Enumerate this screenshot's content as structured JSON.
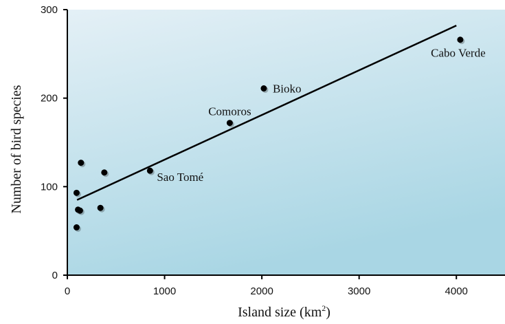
{
  "chart_data": {
    "type": "scatter",
    "title": "",
    "xlabel": "Island size (km",
    "xlabel_superscript": "2",
    "xlabel_suffix": ")",
    "ylabel": "Number of bird species",
    "xlim": [
      0,
      4500
    ],
    "ylim": [
      0,
      300
    ],
    "x_ticks": [
      0,
      1000,
      2000,
      3000,
      4000
    ],
    "y_ticks": [
      0,
      100,
      200,
      300
    ],
    "grid": false,
    "points": [
      {
        "x": 95,
        "y": 54,
        "label": ""
      },
      {
        "x": 95,
        "y": 93,
        "label": ""
      },
      {
        "x": 110,
        "y": 74,
        "label": ""
      },
      {
        "x": 130,
        "y": 73,
        "label": ""
      },
      {
        "x": 140,
        "y": 127,
        "label": ""
      },
      {
        "x": 340,
        "y": 76,
        "label": ""
      },
      {
        "x": 380,
        "y": 116,
        "label": ""
      },
      {
        "x": 850,
        "y": 118,
        "label": "Sao Tomé"
      },
      {
        "x": 1670,
        "y": 172,
        "label": "Comoros"
      },
      {
        "x": 2020,
        "y": 211,
        "label": "Bioko"
      },
      {
        "x": 4040,
        "y": 266,
        "label": "Cabo Verde"
      }
    ],
    "trendline": {
      "x": [
        100,
        4000
      ],
      "y": [
        85,
        282
      ]
    },
    "colors": {
      "background_top": "#e4f0f6",
      "background_bottom": "#a9d6e4",
      "points": "#000000",
      "trendline": "#000000",
      "axis": "#000000"
    }
  }
}
